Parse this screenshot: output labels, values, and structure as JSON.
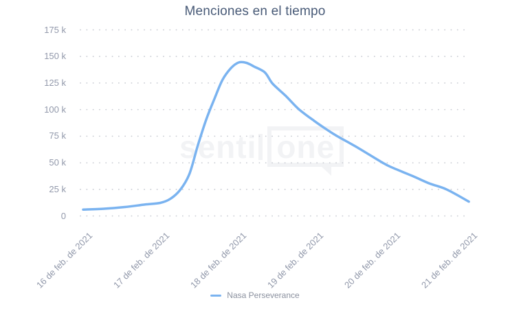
{
  "chart_data": {
    "type": "line",
    "title": "Menciones en el tiempo",
    "xlabel": "",
    "ylabel": "",
    "categories": [
      "16 de feb. de 2021",
      "17 de feb. de 2021",
      "18 de feb. de 2021",
      "19 de feb. de 2021",
      "20 de feb. de 2021",
      "21 de feb. de 2021"
    ],
    "y_tick_labels": [
      "0",
      "25 k",
      "50 k",
      "75 k",
      "100 k",
      "125 k",
      "150 k",
      "175 k"
    ],
    "y_tick_values": [
      0,
      25000,
      50000,
      75000,
      100000,
      125000,
      150000,
      175000
    ],
    "ylim": [
      0,
      175000
    ],
    "grid": "horizontal-dotted",
    "legend_position": "bottom-center",
    "series": [
      {
        "name": "Nasa Perseverance",
        "color": "#7ab3f0",
        "values_by_day": [
          6000,
          12300,
          144300,
          89500,
          46000,
          13500
        ],
        "curve_samples": [
          [
            0.0,
            6000
          ],
          [
            0.27,
            6800
          ],
          [
            0.54,
            8400
          ],
          [
            0.8,
            10700
          ],
          [
            1.0,
            12300
          ],
          [
            1.13,
            16000
          ],
          [
            1.26,
            24500
          ],
          [
            1.38,
            39500
          ],
          [
            1.49,
            66500
          ],
          [
            1.6,
            91000
          ],
          [
            1.71,
            111000
          ],
          [
            1.81,
            128000
          ],
          [
            1.92,
            139000
          ],
          [
            2.02,
            144300
          ],
          [
            2.12,
            144000
          ],
          [
            2.22,
            140500
          ],
          [
            2.36,
            135000
          ],
          [
            2.46,
            124500
          ],
          [
            2.63,
            113000
          ],
          [
            2.8,
            100500
          ],
          [
            3.0,
            89500
          ],
          [
            3.16,
            81500
          ],
          [
            3.29,
            75500
          ],
          [
            3.56,
            64500
          ],
          [
            3.88,
            50500
          ],
          [
            4.0,
            46000
          ],
          [
            4.28,
            37500
          ],
          [
            4.5,
            30500
          ],
          [
            4.72,
            25000
          ],
          [
            5.01,
            13500
          ]
        ]
      }
    ]
  },
  "watermark": {
    "text_left": "senti",
    "text_right": "one"
  },
  "colors": {
    "series_line": "#7ab3f0",
    "title_text": "#485a77",
    "axis_labels": "#9198aa",
    "grid_dots": "#c8cbd2",
    "watermark": "#f2f3f5"
  }
}
